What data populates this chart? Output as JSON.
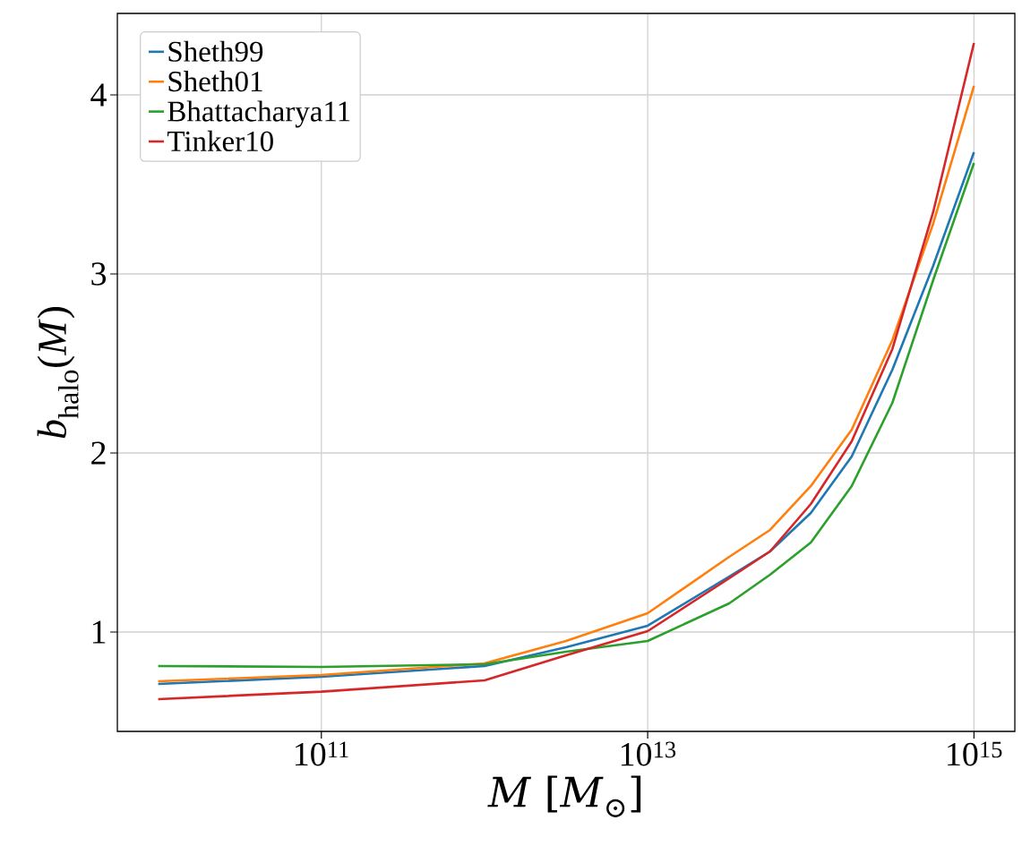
{
  "chart_data": {
    "type": "line",
    "xlabel": "*M* [*M*$_{⊙}$]",
    "ylabel": "*b*$_{halo}$(*M*)",
    "log": "x",
    "x": [
      10000000000.0,
      100000000000.0,
      1000000000000.0,
      3160000000000.0,
      10000000000000.0,
      31600000000000.0,
      56200000000000.0,
      100000000000000.0,
      178000000000000.0,
      316000000000000.0,
      562000000000000.0,
      1000000000000000.0
    ],
    "series": [
      {
        "name": "Sheth99",
        "color": "#1f77b4",
        "values": [
          0.71,
          0.75,
          0.81,
          0.915,
          1.035,
          1.31,
          1.45,
          1.665,
          1.98,
          2.465,
          3.045,
          3.68
        ]
      },
      {
        "name": "Sheth01",
        "color": "#ff7f0e",
        "values": [
          0.725,
          0.76,
          0.825,
          0.95,
          1.105,
          1.42,
          1.57,
          1.815,
          2.13,
          2.63,
          3.28,
          4.05
        ]
      },
      {
        "name": "Bhattacharya11",
        "color": "#2ca02c",
        "values": [
          0.81,
          0.805,
          0.82,
          0.89,
          0.95,
          1.16,
          1.32,
          1.5,
          1.815,
          2.28,
          2.965,
          3.62
        ]
      },
      {
        "name": "Tinker10",
        "color": "#d62728",
        "values": [
          0.625,
          0.667,
          0.73,
          0.87,
          1.005,
          1.3,
          1.45,
          1.715,
          2.065,
          2.58,
          3.345,
          4.29
        ]
      }
    ],
    "xlim": [
      5620000000.0,
      1780000000000000.0
    ],
    "xticks": [
      {
        "value": 100000000000.0,
        "label": "10$^{11}$"
      },
      {
        "value": 10000000000000.0,
        "label": "10$^{13}$"
      },
      {
        "value": 1000000000000000.0,
        "label": "10$^{15}$"
      }
    ],
    "ylim": [
      0.445,
      4.455
    ],
    "yticks": [
      1,
      2,
      3,
      4
    ],
    "grid": true,
    "legend": "top left",
    "line_style": "solid",
    "marker": "none"
  }
}
